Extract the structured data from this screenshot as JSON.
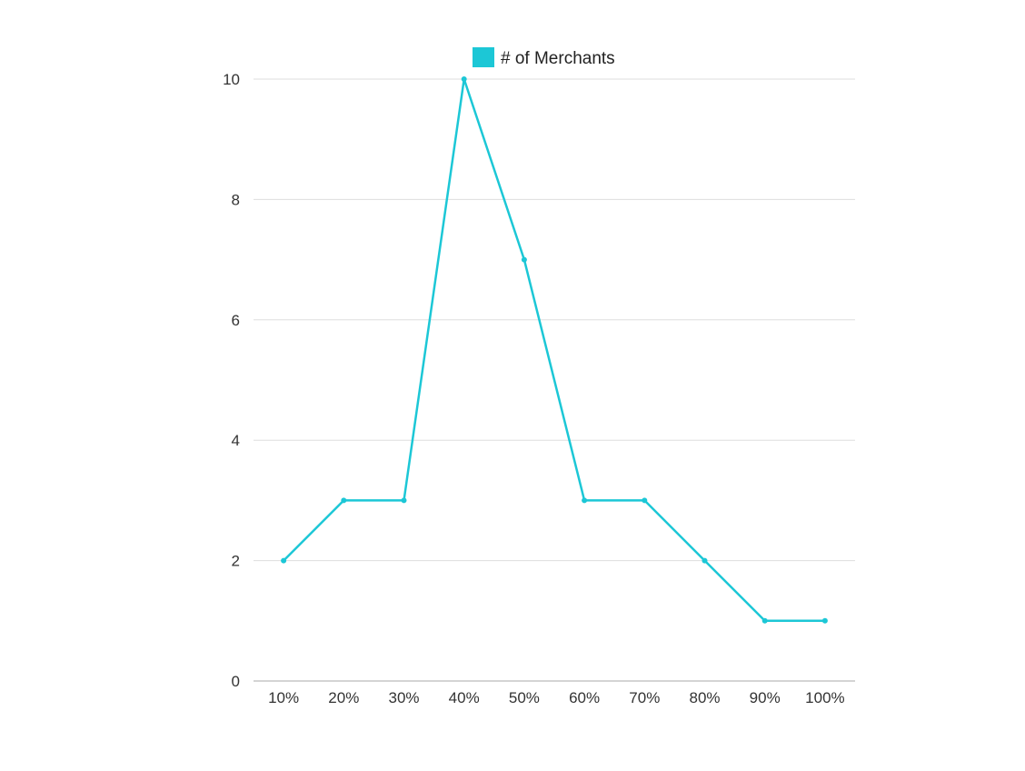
{
  "chart_data": {
    "type": "line",
    "categories": [
      "10%",
      "20%",
      "30%",
      "40%",
      "50%",
      "60%",
      "70%",
      "80%",
      "90%",
      "100%"
    ],
    "series": [
      {
        "name": "# of Merchants",
        "values": [
          2,
          3,
          3,
          10,
          7,
          3,
          3,
          2,
          1,
          1
        ],
        "color": "#1cc7d6"
      }
    ],
    "title": "",
    "xlabel": "",
    "ylabel": "",
    "ylim": [
      0,
      10
    ],
    "yticks": [
      0,
      2,
      4,
      6,
      8,
      10
    ],
    "grid": true,
    "legend_position": "top-center"
  }
}
